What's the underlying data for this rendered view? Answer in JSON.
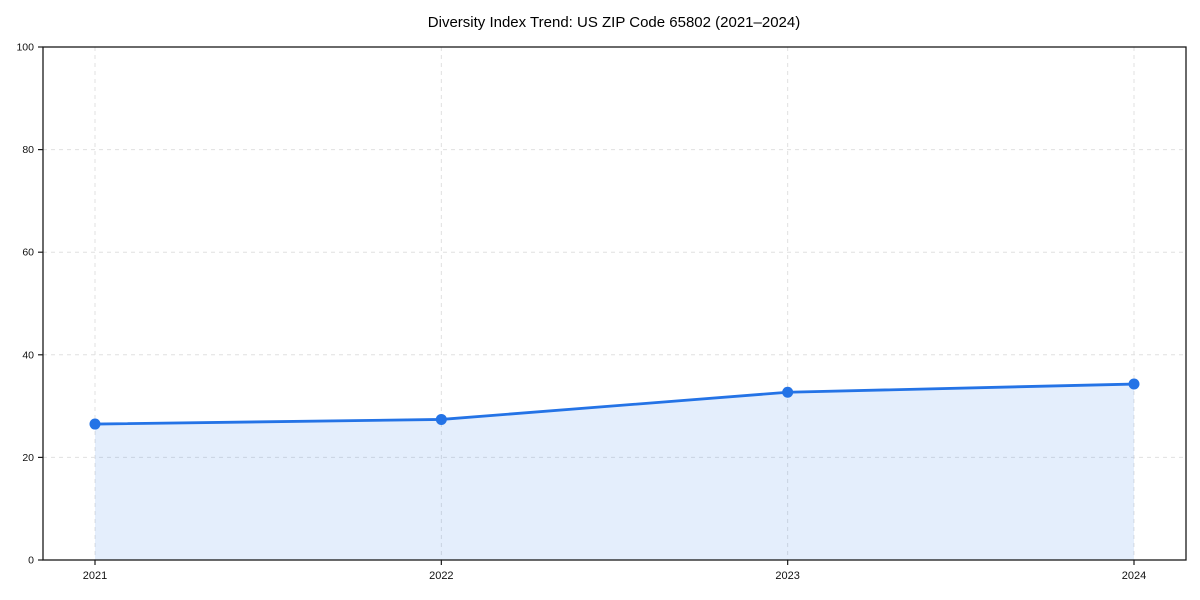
{
  "chart_data": {
    "type": "area",
    "title": "Diversity Index Trend: US ZIP Code 65802 (2021–2024)",
    "x": [
      "2021",
      "2022",
      "2023",
      "2024"
    ],
    "series": [
      {
        "name": "Diversity Index",
        "values": [
          26.5,
          27.4,
          32.7,
          34.3
        ]
      }
    ],
    "xlabel": "",
    "ylabel": "",
    "ylim": [
      0,
      100
    ],
    "yticks": [
      0,
      20,
      40,
      60,
      80,
      100
    ],
    "grid": true,
    "grid_style": "dashed",
    "legend_position": "none",
    "colors": {
      "line": "#2473e6",
      "marker": "#2473e6",
      "area_fill": "#2473e6",
      "area_opacity": 0.12,
      "grid": "#e0e0e0",
      "spine": "#1a1a1a",
      "tick_label": "#111111",
      "background": "#ffffff"
    }
  }
}
